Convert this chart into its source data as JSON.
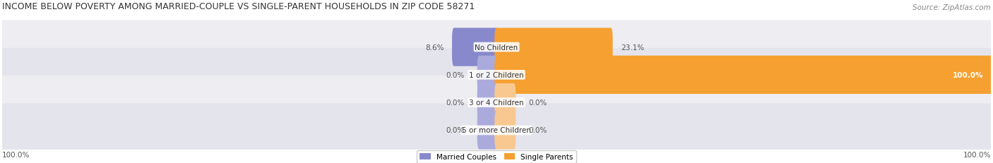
{
  "title": "INCOME BELOW POVERTY AMONG MARRIED-COUPLE VS SINGLE-PARENT HOUSEHOLDS IN ZIP CODE 58271",
  "source": "Source: ZipAtlas.com",
  "categories": [
    "No Children",
    "1 or 2 Children",
    "3 or 4 Children",
    "5 or more Children"
  ],
  "married_values": [
    8.6,
    0.0,
    0.0,
    0.0
  ],
  "single_values": [
    23.1,
    100.0,
    0.0,
    0.0
  ],
  "married_color": "#8888cc",
  "married_color_light": "#aaaadd",
  "single_color": "#f5a030",
  "single_color_light": "#f8c890",
  "row_bg_colors": [
    "#ededf2",
    "#e4e4ec"
  ],
  "title_fontsize": 9.0,
  "source_fontsize": 7.5,
  "label_fontsize": 7.5,
  "cat_fontsize": 7.5,
  "legend_fontsize": 7.5,
  "max_value": 100,
  "bottom_left_label": "100.0%",
  "bottom_right_label": "100.0%",
  "legend_married": "Married Couples",
  "legend_single": "Single Parents",
  "figwidth": 14.06,
  "figheight": 2.32,
  "dpi": 100
}
